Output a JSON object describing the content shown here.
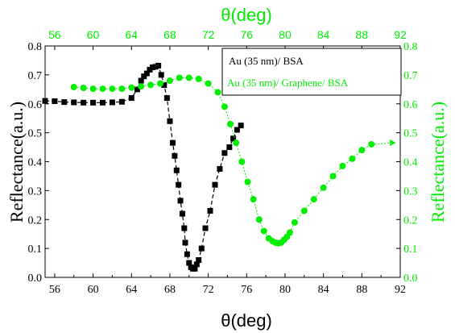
{
  "chart_data": {
    "type": "scatter",
    "bottom_axis": {
      "label": "θ(deg)",
      "range": [
        55,
        92
      ],
      "ticks": [
        56,
        60,
        64,
        68,
        72,
        76,
        80,
        84,
        88,
        92
      ],
      "color": "#000000"
    },
    "top_axis": {
      "label": "θ(deg)",
      "range": [
        55,
        92
      ],
      "ticks": [
        56,
        60,
        64,
        68,
        72,
        76,
        80,
        84,
        88,
        92
      ],
      "color": "#00ee00"
    },
    "left_axis": {
      "label": "Reflectance(a.u.)",
      "range": [
        0.0,
        0.8
      ],
      "ticks": [
        "0.0",
        "0.1",
        "0.2",
        "0.3",
        "0.4",
        "0.5",
        "0.6",
        "0.7",
        "0.8"
      ],
      "color": "#000000"
    },
    "right_axis": {
      "label": "Reflectance(a.u.)",
      "range": [
        0.0,
        0.8
      ],
      "ticks": [
        "0.0",
        "0.1",
        "0.2",
        "0.3",
        "0.4",
        "0.5",
        "0.6",
        "0.7",
        "0.8"
      ],
      "color": "#00ee00"
    },
    "legend": {
      "placement": "top-right",
      "entries": [
        "Au (35 nm)/ BSA",
        "Au (35 nm)/ Graphene/ BSA"
      ]
    },
    "series": [
      {
        "name": "Au (35 nm)/ BSA",
        "color": "#000000",
        "marker": "square",
        "x": [
          55.0,
          56.0,
          57.0,
          58.0,
          59.0,
          60.0,
          61.0,
          62.0,
          63.0,
          64.0,
          64.6,
          65.0,
          65.3,
          65.6,
          65.9,
          66.2,
          66.5,
          66.8,
          67.1,
          67.4,
          67.7,
          68.0,
          68.3,
          68.5,
          68.7,
          68.9,
          69.1,
          69.3,
          69.5,
          69.6,
          69.8,
          70.0,
          70.2,
          70.4,
          70.6,
          70.8,
          71.0,
          71.3,
          71.7,
          72.2,
          72.7,
          73.2,
          73.7,
          74.2,
          74.6,
          75.0,
          75.4
        ],
        "y": [
          0.61,
          0.609,
          0.606,
          0.605,
          0.604,
          0.604,
          0.604,
          0.605,
          0.607,
          0.62,
          0.65,
          0.68,
          0.695,
          0.705,
          0.718,
          0.726,
          0.728,
          0.732,
          0.7,
          0.665,
          0.62,
          0.54,
          0.465,
          0.42,
          0.37,
          0.32,
          0.265,
          0.22,
          0.17,
          0.12,
          0.08,
          0.05,
          0.035,
          0.03,
          0.03,
          0.045,
          0.06,
          0.1,
          0.17,
          0.23,
          0.32,
          0.375,
          0.43,
          0.45,
          0.48,
          0.51,
          0.525
        ]
      },
      {
        "name": "Au (35 nm)/ Graphene/ BSA",
        "color": "#00ee00",
        "marker": "circle",
        "x": [
          58.0,
          59.0,
          60.0,
          61.0,
          62.0,
          63.0,
          64.0,
          65.0,
          66.0,
          67.0,
          68.0,
          69.0,
          70.0,
          71.0,
          72.0,
          73.0,
          73.7,
          74.3,
          74.9,
          75.5,
          76.1,
          76.7,
          77.3,
          77.8,
          78.3,
          78.7,
          79.0,
          79.3,
          79.6,
          79.9,
          80.2,
          80.5,
          81.0,
          82.0,
          83.0,
          84.0,
          85.0,
          86.0,
          87.0,
          88.0,
          89.0
        ],
        "y": [
          0.658,
          0.655,
          0.652,
          0.652,
          0.652,
          0.652,
          0.656,
          0.66,
          0.665,
          0.67,
          0.68,
          0.69,
          0.69,
          0.686,
          0.67,
          0.64,
          0.59,
          0.53,
          0.465,
          0.4,
          0.33,
          0.27,
          0.2,
          0.16,
          0.135,
          0.125,
          0.12,
          0.118,
          0.12,
          0.13,
          0.14,
          0.155,
          0.19,
          0.23,
          0.27,
          0.31,
          0.35,
          0.385,
          0.41,
          0.44,
          0.46
        ]
      }
    ]
  }
}
